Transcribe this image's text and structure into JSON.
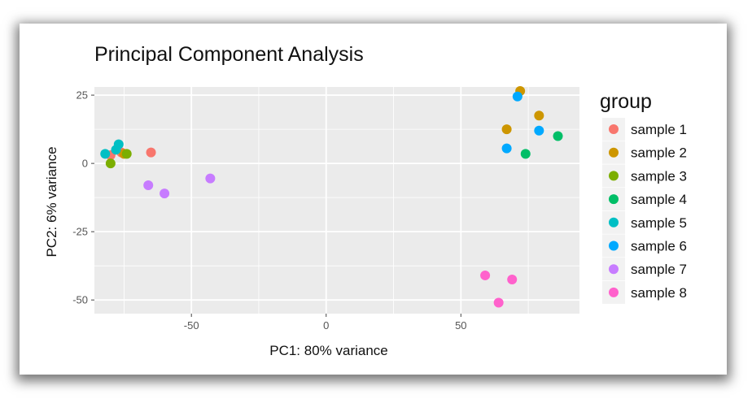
{
  "chart_data": {
    "type": "scatter",
    "title": "Principal Component Analysis",
    "xlabel": "PC1: 80% variance",
    "ylabel": "PC2: 6% variance",
    "xlim": [
      -86,
      94
    ],
    "ylim": [
      -55,
      28
    ],
    "x_ticks": [
      -50,
      0,
      50
    ],
    "y_ticks": [
      25,
      0,
      -25,
      -50
    ],
    "x_tick_labels": [
      "-50",
      "0",
      "50"
    ],
    "y_tick_labels": [
      "25",
      "0",
      "-25",
      "-50"
    ],
    "grid": true,
    "background": "#ebebeb",
    "legend": {
      "title": "group",
      "placement": "right"
    },
    "series": [
      {
        "name": "sample 1",
        "color": "#f8766d",
        "points": [
          [
            -65,
            4
          ],
          [
            -80,
            3
          ],
          [
            -76,
            4
          ]
        ]
      },
      {
        "name": "sample 2",
        "color": "#cd9600",
        "points": [
          [
            67,
            12.5
          ],
          [
            72,
            26.5
          ],
          [
            79,
            17.5
          ],
          [
            -75,
            3.5
          ]
        ]
      },
      {
        "name": "sample 3",
        "color": "#7cae00",
        "points": [
          [
            -80,
            0
          ],
          [
            -74,
            3.5
          ]
        ]
      },
      {
        "name": "sample 4",
        "color": "#00be67",
        "points": [
          [
            86,
            10
          ],
          [
            74,
            3.5
          ]
        ]
      },
      {
        "name": "sample 5",
        "color": "#00bfc4",
        "points": [
          [
            -82,
            3.5
          ],
          [
            -77,
            7
          ],
          [
            -78,
            5
          ]
        ]
      },
      {
        "name": "sample 6",
        "color": "#00a9ff",
        "points": [
          [
            71,
            24.5
          ],
          [
            79,
            12
          ],
          [
            67,
            5.5
          ]
        ]
      },
      {
        "name": "sample 7",
        "color": "#c77cff",
        "points": [
          [
            -66,
            -8
          ],
          [
            -60,
            -11
          ],
          [
            -43,
            -5.5
          ]
        ]
      },
      {
        "name": "sample 8",
        "color": "#ff61cc",
        "points": [
          [
            59,
            -41
          ],
          [
            69,
            -42.5
          ],
          [
            64,
            -51
          ]
        ]
      }
    ]
  }
}
